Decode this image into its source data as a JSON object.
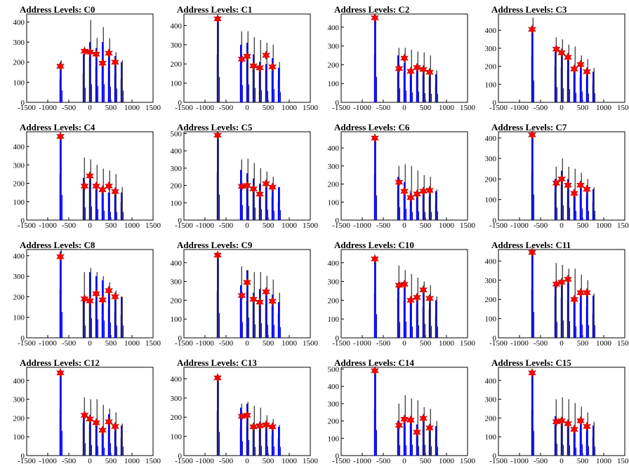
{
  "chart_data": [
    {
      "title": "Address Levels: C0",
      "type": "histogram",
      "xlim": [
        -1500,
        1500
      ],
      "ylim": [
        0,
        440
      ],
      "yticks": [
        0,
        100,
        200,
        300,
        400
      ],
      "x_peaks": [
        -700,
        -150,
        0,
        150,
        300,
        450,
        600,
        750
      ],
      "black_heights": [
        210,
        260,
        410,
        320,
        375,
        320,
        250,
        210
      ],
      "blue_heights": [
        200,
        240,
        300,
        270,
        300,
        260,
        230,
        200
      ],
      "star_values": [
        180,
        255,
        250,
        240,
        195,
        245,
        200
      ]
    },
    {
      "title": "Address Levels: C1",
      "type": "histogram",
      "xlim": [
        -1500,
        1500
      ],
      "ylim": [
        0,
        460
      ],
      "yticks": [
        0,
        100,
        200,
        300,
        400
      ],
      "x_peaks": [
        -700,
        -150,
        0,
        150,
        300,
        450,
        600,
        750
      ],
      "black_heights": [
        450,
        370,
        370,
        340,
        325,
        310,
        300,
        210
      ],
      "blue_heights": [
        440,
        300,
        310,
        250,
        210,
        200,
        230,
        180
      ],
      "star_values": [
        435,
        225,
        240,
        190,
        180,
        245,
        185
      ]
    },
    {
      "title": "Address Levels: C2",
      "type": "histogram",
      "xlim": [
        -1500,
        1500
      ],
      "ylim": [
        0,
        470
      ],
      "yticks": [
        0,
        100,
        200,
        300,
        400
      ],
      "x_peaks": [
        -700,
        -150,
        0,
        150,
        300,
        450,
        600,
        750
      ],
      "black_heights": [
        460,
        290,
        290,
        280,
        270,
        265,
        250,
        170
      ],
      "blue_heights": [
        450,
        250,
        210,
        175,
        190,
        165,
        150,
        150
      ],
      "star_values": [
        450,
        180,
        235,
        165,
        185,
        175,
        160
      ]
    },
    {
      "title": "Address Levels: C3",
      "type": "histogram",
      "xlim": [
        -1500,
        1500
      ],
      "ylim": [
        0,
        490
      ],
      "yticks": [
        0,
        100,
        200,
        300,
        400
      ],
      "x_peaks": [
        -700,
        -150,
        0,
        150,
        300,
        450,
        600,
        750
      ],
      "black_heights": [
        470,
        360,
        350,
        320,
        310,
        260,
        240,
        190
      ],
      "blue_heights": [
        405,
        280,
        260,
        245,
        175,
        200,
        160,
        170
      ],
      "star_values": [
        405,
        295,
        275,
        250,
        185,
        210,
        170
      ]
    },
    {
      "title": "Address Levels: C4",
      "type": "histogram",
      "xlim": [
        -1500,
        1500
      ],
      "ylim": [
        0,
        480
      ],
      "yticks": [
        0,
        100,
        200,
        300,
        400
      ],
      "x_peaks": [
        -700,
        -150,
        0,
        150,
        300,
        450,
        600,
        750
      ],
      "black_heights": [
        460,
        340,
        330,
        300,
        280,
        270,
        250,
        180
      ],
      "blue_heights": [
        455,
        230,
        250,
        200,
        170,
        150,
        150,
        150
      ],
      "star_values": [
        455,
        185,
        240,
        185,
        165,
        185,
        155
      ]
    },
    {
      "title": "Address Levels: C5",
      "type": "histogram",
      "xlim": [
        -1500,
        1500
      ],
      "ylim": [
        0,
        510
      ],
      "yticks": [
        0,
        100,
        200,
        300,
        400,
        500
      ],
      "x_peaks": [
        -700,
        -150,
        0,
        150,
        300,
        450,
        600,
        750
      ],
      "black_heights": [
        500,
        350,
        355,
        330,
        300,
        280,
        250,
        190
      ],
      "blue_heights": [
        490,
        290,
        270,
        240,
        210,
        200,
        180,
        190
      ],
      "star_values": [
        490,
        195,
        200,
        180,
        150,
        210,
        190
      ]
    },
    {
      "title": "Address Levels: C6",
      "type": "histogram",
      "xlim": [
        -1500,
        1500
      ],
      "ylim": [
        0,
        490
      ],
      "yticks": [
        0,
        100,
        200,
        300,
        400
      ],
      "x_peaks": [
        -700,
        -150,
        0,
        150,
        300,
        450,
        600,
        750
      ],
      "black_heights": [
        460,
        300,
        310,
        300,
        275,
        250,
        240,
        170
      ],
      "blue_heights": [
        455,
        240,
        210,
        150,
        160,
        150,
        150,
        160
      ],
      "star_values": [
        455,
        210,
        160,
        125,
        145,
        160,
        165
      ]
    },
    {
      "title": "Address Levels: C7",
      "type": "histogram",
      "xlim": [
        -1500,
        1500
      ],
      "ylim": [
        0,
        430
      ],
      "yticks": [
        0,
        100,
        200,
        300,
        400
      ],
      "x_peaks": [
        -700,
        -150,
        0,
        150,
        300,
        450,
        600,
        750
      ],
      "black_heights": [
        420,
        260,
        300,
        260,
        250,
        230,
        200,
        160
      ],
      "blue_heights": [
        415,
        200,
        240,
        200,
        150,
        190,
        150,
        150
      ],
      "star_values": [
        415,
        180,
        200,
        170,
        130,
        170,
        150
      ]
    },
    {
      "title": "Address Levels: C8",
      "type": "histogram",
      "xlim": [
        -1500,
        1500
      ],
      "ylim": [
        0,
        430
      ],
      "yticks": [
        0,
        100,
        200,
        300,
        400
      ],
      "x_peaks": [
        -700,
        -150,
        0,
        150,
        300,
        450,
        600,
        750
      ],
      "black_heights": [
        430,
        320,
        340,
        320,
        300,
        270,
        230,
        200
      ],
      "blue_heights": [
        420,
        200,
        320,
        300,
        280,
        250,
        200,
        200
      ],
      "star_values": [
        395,
        190,
        180,
        215,
        185,
        230,
        200
      ]
    },
    {
      "title": "Address Levels: C9",
      "type": "histogram",
      "xlim": [
        -1500,
        1500
      ],
      "ylim": [
        0,
        470
      ],
      "yticks": [
        0,
        100,
        200,
        300,
        400
      ],
      "x_peaks": [
        -700,
        -150,
        0,
        150,
        300,
        450,
        600,
        750
      ],
      "black_heights": [
        450,
        380,
        360,
        350,
        350,
        330,
        310,
        240
      ],
      "blue_heights": [
        440,
        280,
        360,
        240,
        260,
        230,
        230,
        190
      ],
      "star_values": [
        440,
        225,
        295,
        205,
        190,
        245,
        195
      ]
    },
    {
      "title": "Address Levels: C10",
      "type": "histogram",
      "xlim": [
        -1500,
        1500
      ],
      "ylim": [
        0,
        470
      ],
      "yticks": [
        0,
        100,
        200,
        300,
        400
      ],
      "x_peaks": [
        -700,
        -150,
        0,
        150,
        300,
        450,
        600,
        750
      ],
      "black_heights": [
        430,
        385,
        360,
        340,
        320,
        300,
        280,
        220
      ],
      "blue_heights": [
        420,
        280,
        290,
        200,
        220,
        250,
        210,
        200
      ],
      "star_values": [
        420,
        280,
        285,
        200,
        215,
        255,
        210
      ]
    },
    {
      "title": "Address Levels: C11",
      "type": "histogram",
      "xlim": [
        -1500,
        1500
      ],
      "ylim": [
        0,
        460
      ],
      "yticks": [
        0,
        100,
        200,
        300,
        400
      ],
      "x_peaks": [
        -700,
        -150,
        0,
        150,
        300,
        450,
        600,
        750
      ],
      "black_heights": [
        460,
        390,
        380,
        360,
        360,
        330,
        300,
        230
      ],
      "blue_heights": [
        450,
        280,
        300,
        290,
        200,
        230,
        220,
        220
      ],
      "star_values": [
        445,
        280,
        290,
        305,
        200,
        235,
        235
      ]
    },
    {
      "title": "Address Levels: C12",
      "type": "histogram",
      "xlim": [
        -1500,
        1500
      ],
      "ylim": [
        0,
        470
      ],
      "yticks": [
        0,
        100,
        200,
        300,
        400
      ],
      "x_peaks": [
        -700,
        -150,
        0,
        150,
        300,
        450,
        600,
        750
      ],
      "black_heights": [
        445,
        310,
        300,
        300,
        270,
        250,
        230,
        170
      ],
      "blue_heights": [
        440,
        220,
        190,
        170,
        140,
        220,
        160,
        160
      ],
      "star_values": [
        440,
        215,
        195,
        175,
        135,
        180,
        155
      ]
    },
    {
      "title": "Address Levels: C13",
      "type": "histogram",
      "xlim": [
        -1500,
        1500
      ],
      "ylim": [
        0,
        460
      ],
      "yticks": [
        0,
        100,
        200,
        300,
        400
      ],
      "x_peaks": [
        -700,
        -150,
        0,
        150,
        300,
        450,
        600,
        750
      ],
      "black_heights": [
        420,
        270,
        280,
        260,
        250,
        210,
        190,
        160
      ],
      "blue_heights": [
        410,
        250,
        270,
        150,
        170,
        160,
        160,
        150
      ],
      "star_values": [
        405,
        205,
        210,
        150,
        155,
        160,
        150
      ]
    },
    {
      "title": "Address Levels: C14",
      "type": "histogram",
      "xlim": [
        -1500,
        1500
      ],
      "ylim": [
        0,
        510
      ],
      "yticks": [
        0,
        100,
        200,
        300,
        400,
        500
      ],
      "x_peaks": [
        -700,
        -150,
        0,
        150,
        300,
        450,
        600,
        750
      ],
      "black_heights": [
        490,
        300,
        350,
        330,
        320,
        280,
        270,
        200
      ],
      "blue_heights": [
        490,
        200,
        200,
        210,
        180,
        210,
        180,
        170
      ],
      "star_values": [
        490,
        175,
        210,
        205,
        135,
        215,
        160
      ]
    },
    {
      "title": "Address Levels: C15",
      "type": "histogram",
      "xlim": [
        -1500,
        1500
      ],
      "ylim": [
        0,
        470
      ],
      "yticks": [
        0,
        100,
        200,
        300,
        400
      ],
      "x_peaks": [
        -700,
        -150,
        0,
        150,
        300,
        450,
        600,
        750
      ],
      "black_heights": [
        445,
        300,
        310,
        300,
        280,
        260,
        230,
        180
      ],
      "blue_heights": [
        440,
        210,
        190,
        180,
        140,
        200,
        170,
        160
      ],
      "star_values": [
        440,
        180,
        185,
        170,
        140,
        185,
        155
      ]
    }
  ],
  "colors": {
    "black_series": "#000000",
    "blue_series": "#0000ff",
    "marker": "#ff0000",
    "axis": "#000000"
  }
}
